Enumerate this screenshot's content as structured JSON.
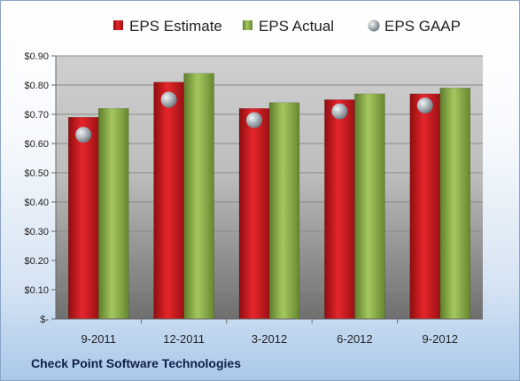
{
  "chart_data": {
    "type": "bar",
    "categories": [
      "9-2011",
      "12-2011",
      "3-2012",
      "6-2012",
      "9-2012"
    ],
    "series": [
      {
        "name": "EPS Estimate",
        "kind": "bar",
        "color": "#c0161c",
        "values": [
          0.69,
          0.81,
          0.72,
          0.75,
          0.77
        ]
      },
      {
        "name": "EPS Actual",
        "kind": "bar",
        "color": "#8cb04a",
        "values": [
          0.72,
          0.84,
          0.74,
          0.77,
          0.79
        ]
      },
      {
        "name": "EPS GAAP",
        "kind": "marker",
        "color": "#9aa4ad",
        "values": [
          0.63,
          0.75,
          0.68,
          0.71,
          0.73
        ]
      }
    ],
    "yticks": [
      "$-",
      "$0.10",
      "$0.20",
      "$0.30",
      "$0.40",
      "$0.50",
      "$0.60",
      "$0.70",
      "$0.80",
      "$0.90"
    ],
    "ylim": [
      0,
      0.9
    ],
    "grid": true,
    "legend_position": "top"
  },
  "footer": {
    "company": "Check Point Software Technologies"
  }
}
